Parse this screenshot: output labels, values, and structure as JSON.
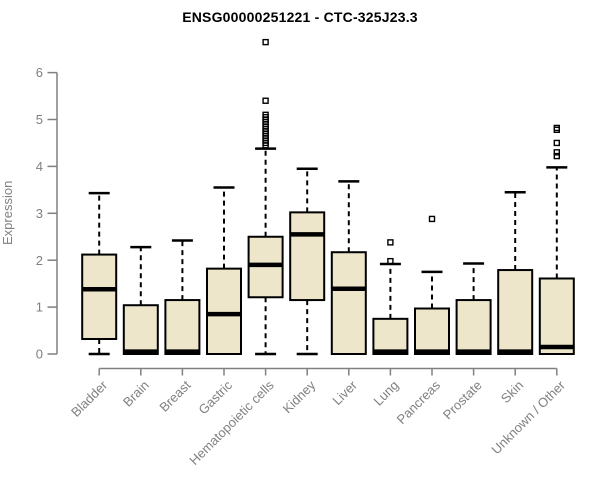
{
  "title": "ENSG00000251221 - CTC-325J23.3",
  "chart_data": {
    "type": "boxplot",
    "title": "ENSG00000251221 - CTC-325J23.3",
    "xlabel": "",
    "ylabel": "Expression",
    "ylim": [
      0,
      6.7
    ],
    "yticks": [
      "0",
      "1",
      "2",
      "3",
      "4",
      "5",
      "6"
    ],
    "grid": false,
    "legend": "none",
    "categories": [
      "Bladder",
      "Brain",
      "Breast",
      "Gastric",
      "Hematopoietic cells",
      "Kidney",
      "Liver",
      "Lung",
      "Pancreas",
      "Prostate",
      "Skin",
      "Unknown / Other"
    ],
    "boxes": [
      {
        "label": "Bladder",
        "low": 0,
        "q1": 0.32,
        "median": 1.38,
        "q3": 2.12,
        "high": 3.43,
        "outliers": []
      },
      {
        "label": "Brain",
        "low": 0,
        "q1": 0,
        "median": 0.05,
        "q3": 1.04,
        "high": 2.28,
        "outliers": []
      },
      {
        "label": "Breast",
        "low": 0,
        "q1": 0,
        "median": 0.05,
        "q3": 1.15,
        "high": 2.42,
        "outliers": []
      },
      {
        "label": "Gastric",
        "low": 0,
        "q1": 0,
        "median": 0.85,
        "q3": 1.82,
        "high": 3.55,
        "outliers": []
      },
      {
        "label": "Hematopoietic cells",
        "low": 0,
        "q1": 1.21,
        "median": 1.9,
        "q3": 2.5,
        "high": 4.38,
        "outliers": [
          4.45,
          4.5,
          4.55,
          4.6,
          4.65,
          4.7,
          4.75,
          4.8,
          4.85,
          4.9,
          4.95,
          5.0,
          5.05,
          5.1,
          5.4,
          6.65
        ]
      },
      {
        "label": "Kidney",
        "low": 0,
        "q1": 1.15,
        "median": 2.55,
        "q3": 3.02,
        "high": 3.95,
        "outliers": []
      },
      {
        "label": "Liver",
        "low": 0,
        "q1": 0,
        "median": 1.39,
        "q3": 2.17,
        "high": 3.68,
        "outliers": []
      },
      {
        "label": "Lung",
        "low": 0,
        "q1": 0,
        "median": 0.05,
        "q3": 0.75,
        "high": 1.92,
        "outliers": [
          1.98,
          2.38
        ]
      },
      {
        "label": "Pancreas",
        "low": 0,
        "q1": 0,
        "median": 0.05,
        "q3": 0.97,
        "high": 1.75,
        "outliers": [
          2.88
        ]
      },
      {
        "label": "Prostate",
        "low": 0,
        "q1": 0,
        "median": 0.05,
        "q3": 1.15,
        "high": 1.93,
        "outliers": []
      },
      {
        "label": "Skin",
        "low": 0,
        "q1": 0,
        "median": 0.05,
        "q3": 1.79,
        "high": 3.45,
        "outliers": []
      },
      {
        "label": "Unknown / Other",
        "low": 0,
        "q1": 0,
        "median": 0.15,
        "q3": 1.61,
        "high": 3.98,
        "outliers": [
          4.22,
          4.3,
          4.5,
          4.78,
          4.82
        ]
      }
    ],
    "colors": {
      "box_fill": "#EDE6CB",
      "box_stroke": "#000000",
      "median_color": "#000000",
      "whisker_color": "#000000",
      "outlier_stroke": "#000000",
      "axis_color": "#808080",
      "tick_label_color": "#808080",
      "title_color": "#000000",
      "background": "#FFFFFF"
    }
  }
}
